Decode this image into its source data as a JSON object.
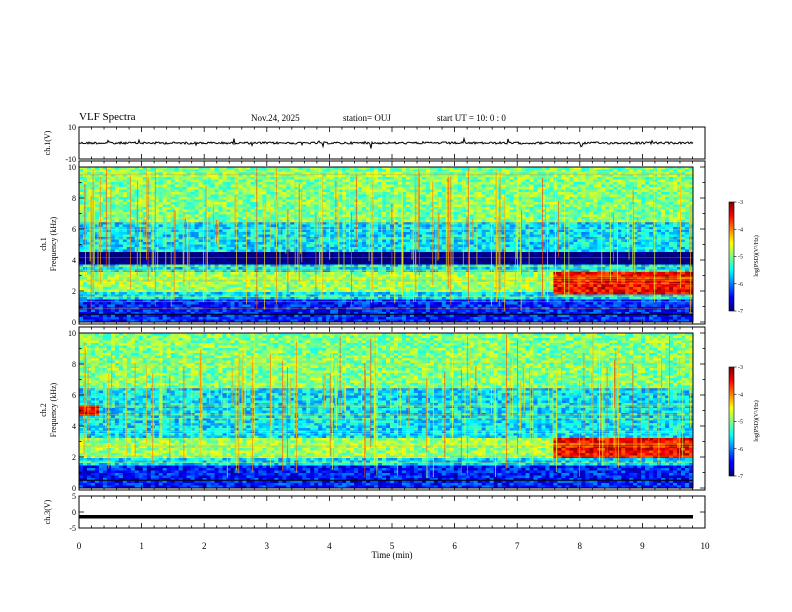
{
  "header": {
    "title": "VLF Spectra",
    "date": "Nov.24, 2025",
    "station": "station= OUJ",
    "start_ut": "start  UT  =   10: 0   : 0"
  },
  "colors": {
    "spectrogram_scale": [
      "#00007f",
      "#0000ff",
      "#007fff",
      "#00ffff",
      "#7fff7f",
      "#ffff00",
      "#ff7f00",
      "#ff0000",
      "#7f0000"
    ]
  },
  "chart_data": [
    {
      "type": "line",
      "name": "ch1-waveform",
      "ylabel": "ch.1(V)",
      "ylim": [
        -10,
        10
      ],
      "yticks": [
        10,
        -10
      ],
      "xlim": [
        0,
        10
      ],
      "baseline": 0
    },
    {
      "type": "heatmap",
      "name": "ch1-spectrogram",
      "ylabel_top": "ch.1",
      "ylabel": "Frequency (kHz)",
      "ylim": [
        0,
        10
      ],
      "yticks": [
        0,
        2,
        4,
        6,
        8,
        10
      ],
      "xlim": [
        0,
        10
      ],
      "colorbar": {
        "label": "log(PSD)(V²/Hz)",
        "range": [
          -7,
          -3
        ],
        "ticks": [
          -3,
          -4,
          -5,
          -6,
          -7
        ]
      },
      "features": [
        {
          "desc": "dark band",
          "freq_khz": [
            3.7,
            4.5
          ],
          "time_min": [
            0,
            10
          ]
        },
        {
          "desc": "intense emission",
          "freq_khz": [
            1.8,
            3.3
          ],
          "time_min": [
            7.6,
            9.8
          ],
          "level": -3.5
        }
      ]
    },
    {
      "type": "heatmap",
      "name": "ch2-spectrogram",
      "ylabel_top": "ch.2",
      "ylabel": "Frequency (kHz)",
      "ylim": [
        0,
        10
      ],
      "yticks": [
        0,
        2,
        4,
        6,
        8,
        10
      ],
      "xlim": [
        0,
        10
      ],
      "colorbar": {
        "label": "log(PSD)(V²/Hz)",
        "range": [
          -7,
          -3
        ],
        "ticks": [
          -3,
          -4,
          -5,
          -6,
          -7
        ]
      },
      "features": [
        {
          "desc": "intense emission",
          "freq_khz": [
            4.7,
            5.4
          ],
          "time_min": [
            0,
            0.35
          ],
          "level": -3.5
        },
        {
          "desc": "intense emission",
          "freq_khz": [
            1.9,
            3.3
          ],
          "time_min": [
            7.6,
            9.8
          ],
          "level": -3.5
        }
      ]
    },
    {
      "type": "line",
      "name": "ch3-waveform",
      "ylabel": "ch.3(V)",
      "ylim": [
        -5,
        5
      ],
      "yticks": [
        5,
        0,
        -5
      ],
      "xlim": [
        0,
        10
      ],
      "baseline": -1.5
    }
  ],
  "xaxis": {
    "label": "Time (min)",
    "ticks": [
      "0",
      "1",
      "2",
      "3",
      "4",
      "5",
      "6",
      "7",
      "8",
      "9",
      "10"
    ]
  }
}
